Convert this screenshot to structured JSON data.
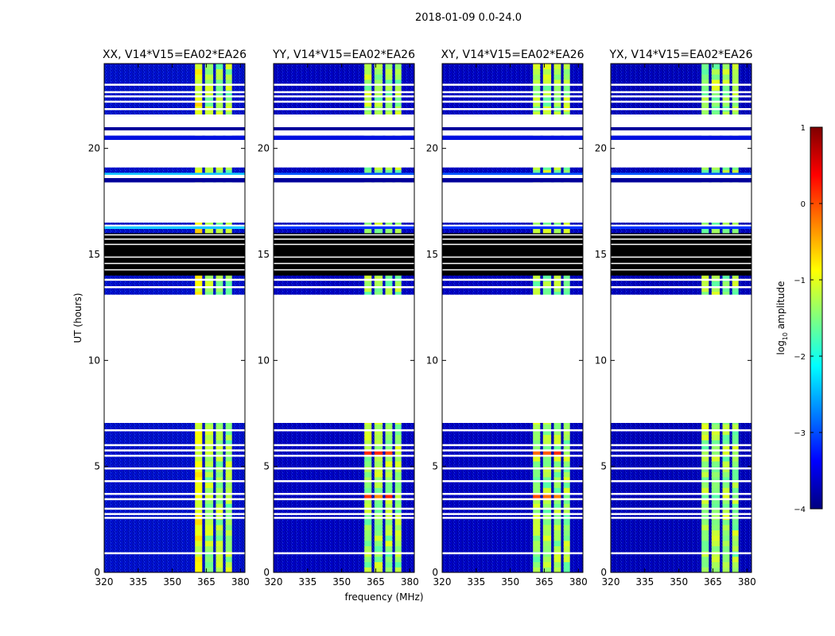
{
  "chart_data": {
    "type": "heatmap",
    "title": "2018-01-09 0.0-24.0",
    "xlabel": "frequency (MHz)",
    "ylabel": "UT (hours)",
    "xlim": [
      320,
      382
    ],
    "ylim": [
      0,
      24
    ],
    "xticks": [
      320,
      335,
      350,
      365,
      380
    ],
    "yticks": [
      0,
      5,
      10,
      15,
      20
    ],
    "colorbar": {
      "label_prefix": "log",
      "label_sub": "10",
      "label_suffix": " amplitude",
      "range": [
        -4,
        1
      ],
      "ticks": [
        1,
        0,
        -1,
        -2,
        -3,
        -4
      ],
      "colormap": "jet"
    },
    "rfi_band_mhz": [
      360,
      378
    ],
    "rfi_gap_mhz": [
      363.2,
      364.4,
      368.0,
      369.2,
      372.3,
      373.5,
      376.3
    ],
    "blank_ut": [
      [
        7.05,
        13.1
      ],
      [
        16.5,
        18.4
      ],
      [
        18.6,
        18.75
      ],
      [
        19.1,
        20.4
      ],
      [
        20.6,
        20.85
      ],
      [
        21.0,
        21.6
      ]
    ],
    "empty_black_ut": [
      14.0,
      16.0
    ],
    "panels": [
      {
        "title": "XX, V14*V15=EA02*EA26",
        "background_level": -3.2
      },
      {
        "title": "YY, V14*V15=EA02*EA26",
        "background_level": -3.5
      },
      {
        "title": "XY, V14*V15=EA02*EA26",
        "background_level": -3.5
      },
      {
        "title": "YX, V14*V15=EA02*EA26",
        "background_level": -3.6
      }
    ]
  }
}
